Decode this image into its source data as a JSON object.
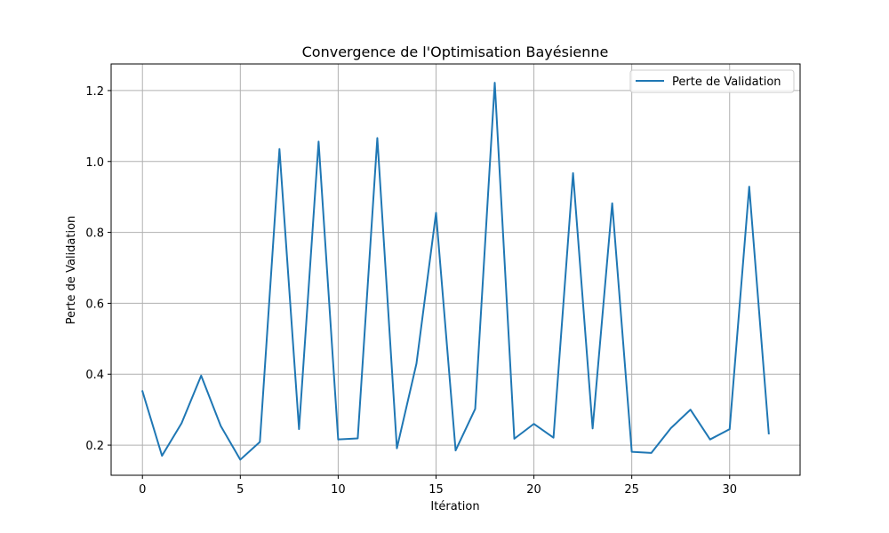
{
  "chart_data": {
    "type": "line",
    "title": "Convergence de l'Optimisation Bayésienne",
    "xlabel": "Itération",
    "ylabel": "Perte de Validation",
    "xlim": [
      -1.6,
      33.6
    ],
    "ylim": [
      0.115,
      1.275
    ],
    "xticks": [
      0,
      5,
      10,
      15,
      20,
      25,
      30
    ],
    "xtick_labels": [
      "0",
      "5",
      "10",
      "15",
      "20",
      "25",
      "30"
    ],
    "yticks": [
      0.2,
      0.4,
      0.6,
      0.8,
      1.0,
      1.2
    ],
    "ytick_labels": [
      "0.2",
      "0.4",
      "0.6",
      "0.8",
      "1.0",
      "1.2"
    ],
    "grid": true,
    "legend_position": "top-right",
    "series": [
      {
        "name": "Perte de Validation",
        "color": "#1f77b4",
        "x": [
          0,
          1,
          2,
          3,
          4,
          5,
          6,
          7,
          8,
          9,
          10,
          11,
          12,
          13,
          14,
          15,
          16,
          17,
          18,
          19,
          20,
          21,
          22,
          23,
          24,
          25,
          26,
          27,
          28,
          29,
          30,
          31,
          32
        ],
        "values": [
          0.352,
          0.17,
          0.262,
          0.396,
          0.254,
          0.159,
          0.209,
          1.035,
          0.245,
          1.056,
          0.216,
          0.219,
          1.066,
          0.191,
          0.43,
          0.855,
          0.185,
          0.302,
          1.222,
          0.218,
          0.26,
          0.221,
          0.967,
          0.247,
          0.882,
          0.181,
          0.178,
          0.248,
          0.3,
          0.216,
          0.245,
          0.929,
          0.233
        ]
      }
    ]
  }
}
